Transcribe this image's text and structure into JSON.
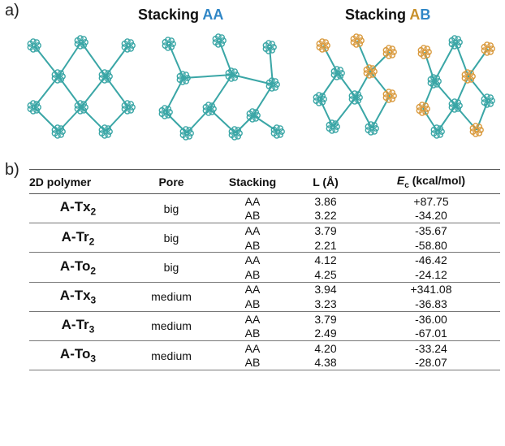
{
  "panel_a_label": "a)",
  "panel_b_label": "b)",
  "stacking_aa_word": "Stacking ",
  "stacking_aa_tag": "AA",
  "stacking_ab_word": "Stacking ",
  "stacking_ab_tag_a": "A",
  "stacking_ab_tag_b": "B",
  "colors": {
    "teal": "#3aa6a6",
    "orange": "#d99a3e",
    "blue_label": "#2f86c6",
    "gold_label": "#c8902a"
  },
  "table": {
    "headers": {
      "polymer": "2D polymer",
      "pore": "Pore",
      "stacking": "Stacking",
      "length": "L (Å)",
      "ec_symbol": "E",
      "ec_sub": "c",
      "ec_unit": " (kcal/mol)"
    },
    "rows": [
      {
        "name": "A-Tx",
        "sub": "2",
        "pore": "big",
        "s1": "AA",
        "l1": "3.86",
        "e1": "+87.75",
        "s2": "AB",
        "l2": "3.22",
        "e2": "-34.20"
      },
      {
        "name": "A-Tr",
        "sub": "2",
        "pore": "big",
        "s1": "AA",
        "l1": "3.79",
        "e1": "-35.67",
        "s2": "AB",
        "l2": "2.21",
        "e2": "-58.80"
      },
      {
        "name": "A-To",
        "sub": "2",
        "pore": "big",
        "s1": "AA",
        "l1": "4.12",
        "e1": "-46.42",
        "s2": "AB",
        "l2": "4.25",
        "e2": "-24.12"
      },
      {
        "name": "A-Tx",
        "sub": "3",
        "pore": "medium",
        "s1": "AA",
        "l1": "3.94",
        "e1": "+341.08",
        "s2": "AB",
        "l2": "3.23",
        "e2": "-36.83"
      },
      {
        "name": "A-Tr",
        "sub": "3",
        "pore": "medium",
        "s1": "AA",
        "l1": "3.79",
        "e1": "-36.00",
        "s2": "AB",
        "l2": "2.49",
        "e2": "-67.01"
      },
      {
        "name": "A-To",
        "sub": "3",
        "pore": "medium",
        "s1": "AA",
        "l1": "4.20",
        "e1": "-33.24",
        "s2": "AB",
        "l2": "4.38",
        "e2": "-28.07"
      }
    ]
  }
}
